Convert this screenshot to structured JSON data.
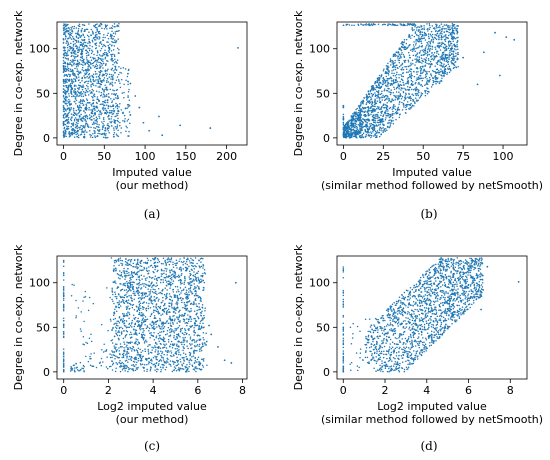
{
  "figure": {
    "panels": [
      {
        "caption": "(a)"
      },
      {
        "caption": "(b)"
      },
      {
        "caption": "(c)"
      },
      {
        "caption": "(d)"
      }
    ]
  },
  "chart_data": [
    {
      "type": "scatter",
      "title": "",
      "caption": "(a)",
      "xlabel": [
        "Imputed value",
        "(our method)"
      ],
      "ylabel": "Degree in co-exp. network",
      "xlim": [
        -8,
        225
      ],
      "ylim": [
        -8,
        130
      ],
      "xticks": [
        0,
        50,
        100,
        150,
        200
      ],
      "yticks": [
        0,
        50,
        100
      ],
      "grid": false,
      "color": "#1f77b4",
      "cluster": {
        "x_bulk_max": 70,
        "y_max": 128,
        "dense_band": "x 0-70 across all degrees"
      },
      "outliers": [
        {
          "x": 214,
          "y": 101
        },
        {
          "x": 180,
          "y": 11
        },
        {
          "x": 143,
          "y": 14
        },
        {
          "x": 121,
          "y": 3
        },
        {
          "x": 117,
          "y": 24
        },
        {
          "x": 105,
          "y": 8
        },
        {
          "x": 98,
          "y": 17
        },
        {
          "x": 93,
          "y": 34
        },
        {
          "x": 88,
          "y": 47
        },
        {
          "x": 82,
          "y": 61
        },
        {
          "x": 79,
          "y": 72
        },
        {
          "x": 76,
          "y": 33
        }
      ]
    },
    {
      "type": "scatter",
      "title": "",
      "caption": "(b)",
      "xlabel": [
        "Imputed value",
        "(similar method followed by netSmooth)"
      ],
      "ylabel": "Degree in co-exp. network",
      "xlim": [
        -4,
        115
      ],
      "ylim": [
        -8,
        130
      ],
      "xticks": [
        0,
        25,
        50,
        75,
        100
      ],
      "yticks": [
        0,
        50,
        100
      ],
      "grid": false,
      "color": "#1f77b4",
      "cluster": {
        "shape": "triangular band rising from origin; degree increases with imputed value"
      },
      "outliers": [
        {
          "x": 107,
          "y": 110
        },
        {
          "x": 102,
          "y": 113
        },
        {
          "x": 98,
          "y": 70
        },
        {
          "x": 95,
          "y": 118
        },
        {
          "x": 88,
          "y": 96
        },
        {
          "x": 84,
          "y": 60
        },
        {
          "x": 75,
          "y": 90
        }
      ]
    },
    {
      "type": "scatter",
      "title": "",
      "caption": "(c)",
      "xlabel": [
        "Log2 imputed value",
        "(our method)"
      ],
      "ylabel": "Degree in co-exp. network",
      "xlim": [
        -0.3,
        8.2
      ],
      "ylim": [
        -8,
        130
      ],
      "xticks": [
        0,
        2,
        4,
        6,
        8
      ],
      "yticks": [
        0,
        50,
        100
      ],
      "grid": false,
      "color": "#1f77b4",
      "cluster": {
        "main_x_range": [
          2.2,
          6.4
        ],
        "vertical_column_at_x": 0
      },
      "outliers": [
        {
          "x": 7.7,
          "y": 100
        },
        {
          "x": 7.5,
          "y": 10
        },
        {
          "x": 7.2,
          "y": 13
        },
        {
          "x": 6.9,
          "y": 28
        },
        {
          "x": 6.6,
          "y": 42
        },
        {
          "x": 6.5,
          "y": 52
        }
      ]
    },
    {
      "type": "scatter",
      "title": "",
      "caption": "(d)",
      "xlabel": [
        "Log2 imputed value",
        "(similar method followed by netSmooth)"
      ],
      "ylabel": "Degree in co-exp. network",
      "xlim": [
        -0.3,
        8.8
      ],
      "ylim": [
        -8,
        130
      ],
      "xticks": [
        0,
        2,
        4,
        6,
        8
      ],
      "yticks": [
        0,
        50,
        100
      ],
      "grid": false,
      "color": "#1f77b4",
      "cluster": {
        "shape": "diagonal band rising from (1,0) to (6.5,128)",
        "vertical_column_at_x": 0
      },
      "outliers": [
        {
          "x": 8.4,
          "y": 101
        },
        {
          "x": 6.9,
          "y": 118
        },
        {
          "x": 6.7,
          "y": 92
        },
        {
          "x": 6.6,
          "y": 70
        }
      ]
    }
  ]
}
